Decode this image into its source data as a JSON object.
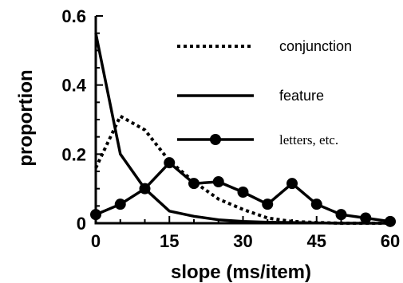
{
  "chart_data": {
    "type": "line",
    "xlabel": "slope (ms/item)",
    "ylabel": "proportion",
    "xlim": [
      0,
      60
    ],
    "ylim": [
      0,
      0.6
    ],
    "x_ticks": [
      "0",
      "15",
      "30",
      "45",
      "60"
    ],
    "y_ticks": [
      "0",
      "0.2",
      "0.4",
      "0.6"
    ],
    "grid": false,
    "legend_position": "top-right",
    "series": [
      {
        "name": "conjunction",
        "style": "dotted",
        "x": [
          0,
          5,
          10,
          15,
          20,
          25,
          30,
          35,
          40,
          45,
          50,
          55,
          60
        ],
        "y": [
          0.16,
          0.31,
          0.27,
          0.18,
          0.12,
          0.07,
          0.04,
          0.015,
          0.005,
          0.002,
          0,
          0,
          0
        ]
      },
      {
        "name": "feature",
        "style": "solid",
        "x": [
          0,
          5,
          10,
          15,
          20,
          25,
          30,
          35,
          40,
          45,
          50,
          55,
          60
        ],
        "y": [
          0.55,
          0.2,
          0.1,
          0.035,
          0.02,
          0.01,
          0.005,
          0.003,
          0.002,
          0.001,
          0,
          0,
          0
        ]
      },
      {
        "name": "letters, etc.",
        "style": "solid-markers",
        "x": [
          0,
          5,
          10,
          15,
          20,
          25,
          30,
          35,
          40,
          45,
          50,
          55,
          60
        ],
        "y": [
          0.025,
          0.055,
          0.1,
          0.175,
          0.115,
          0.12,
          0.09,
          0.055,
          0.115,
          0.055,
          0.025,
          0.015,
          0.005
        ]
      }
    ]
  }
}
